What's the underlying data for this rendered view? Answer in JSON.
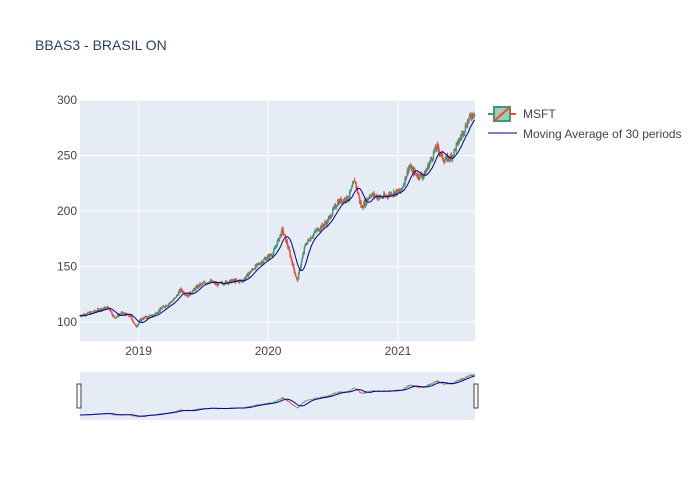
{
  "chart_data": {
    "type": "candlestick",
    "title": "BBAS3 - BRASIL ON",
    "xlabel": "",
    "ylabel": "",
    "ylim": [
      83,
      300
    ],
    "y_ticks": [
      100,
      150,
      200,
      250,
      300
    ],
    "x_ticks": [
      {
        "label": "2019",
        "date": "2019-01-01"
      },
      {
        "label": "2020",
        "date": "2020-01-01"
      },
      {
        "label": "2021",
        "date": "2021-01-01"
      }
    ],
    "x_range": [
      "2018-07-20",
      "2021-08-06"
    ],
    "increasing_color": "#3d9970",
    "decreasing_color": "#ff4136",
    "ma_color": "#00008b",
    "series": [
      {
        "name": "MSFT"
      },
      {
        "name": "Moving Average of 30 periods"
      }
    ],
    "approx_close_path": [
      [
        "2018-07-20",
        106
      ],
      [
        "2018-08-15",
        108
      ],
      [
        "2018-09-20",
        112
      ],
      [
        "2018-10-10",
        113
      ],
      [
        "2018-10-24",
        104
      ],
      [
        "2018-11-15",
        108
      ],
      [
        "2018-12-10",
        105
      ],
      [
        "2018-12-24",
        96
      ],
      [
        "2019-01-10",
        103
      ],
      [
        "2019-02-10",
        106
      ],
      [
        "2019-03-10",
        113
      ],
      [
        "2019-04-10",
        120
      ],
      [
        "2019-04-30",
        129
      ],
      [
        "2019-05-20",
        124
      ],
      [
        "2019-06-20",
        133
      ],
      [
        "2019-07-20",
        137
      ],
      [
        "2019-08-10",
        134
      ],
      [
        "2019-09-20",
        137
      ],
      [
        "2019-10-20",
        137
      ],
      [
        "2019-11-20",
        148
      ],
      [
        "2019-12-20",
        156
      ],
      [
        "2020-01-15",
        162
      ],
      [
        "2020-02-10",
        183
      ],
      [
        "2020-02-24",
        170
      ],
      [
        "2020-03-16",
        145
      ],
      [
        "2020-03-23",
        137
      ],
      [
        "2020-04-15",
        170
      ],
      [
        "2020-05-15",
        182
      ],
      [
        "2020-06-15",
        190
      ],
      [
        "2020-07-15",
        208
      ],
      [
        "2020-08-15",
        212
      ],
      [
        "2020-09-01",
        228
      ],
      [
        "2020-09-20",
        203
      ],
      [
        "2020-10-15",
        215
      ],
      [
        "2020-11-15",
        212
      ],
      [
        "2020-12-15",
        216
      ],
      [
        "2021-01-10",
        218
      ],
      [
        "2021-02-01",
        240
      ],
      [
        "2021-02-25",
        232
      ],
      [
        "2021-03-15",
        232
      ],
      [
        "2021-04-20",
        258
      ],
      [
        "2021-05-10",
        246
      ],
      [
        "2021-06-01",
        249
      ],
      [
        "2021-06-20",
        262
      ],
      [
        "2021-07-20",
        283
      ],
      [
        "2021-08-06",
        290
      ]
    ]
  },
  "legend": {
    "items": [
      "MSFT",
      "Moving Average of 30 periods"
    ]
  }
}
